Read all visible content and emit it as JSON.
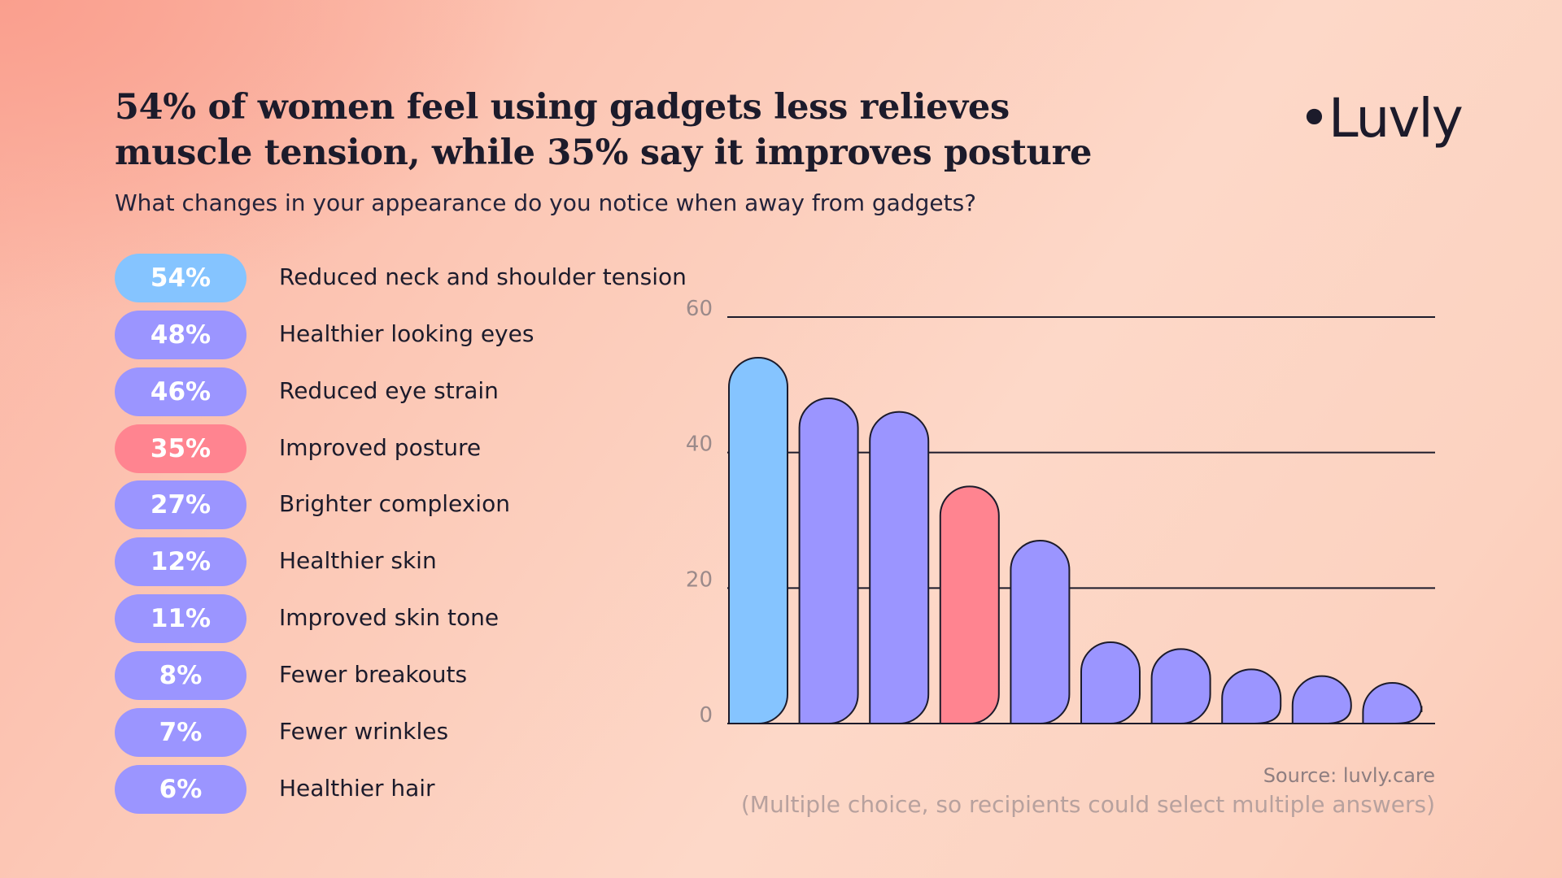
{
  "header": {
    "title": "54% of women feel using gadgets less relieves muscle tension, while 35% say it improves posture",
    "subtitle": "What changes in your appearance do you notice when away from gadgets?",
    "logo": "•Luvly"
  },
  "legend_items": [
    {
      "pct": "54%",
      "label": "Reduced neck and shoulder tension",
      "color": "#85c4ff"
    },
    {
      "pct": "48%",
      "label": "Healthier looking eyes",
      "color": "#9b95ff"
    },
    {
      "pct": "46%",
      "label": "Reduced eye strain",
      "color": "#9b95ff"
    },
    {
      "pct": "35%",
      "label": "Improved posture",
      "color": "#ff8490"
    },
    {
      "pct": "27%",
      "label": "Brighter complexion",
      "color": "#9b95ff"
    },
    {
      "pct": "12%",
      "label": "Healthier skin",
      "color": "#9b95ff"
    },
    {
      "pct": "11%",
      "label": "Improved skin tone",
      "color": "#9b95ff"
    },
    {
      "pct": "8%",
      "label": "Fewer breakouts",
      "color": "#9b95ff"
    },
    {
      "pct": "7%",
      "label": "Fewer wrinkles",
      "color": "#9b95ff"
    },
    {
      "pct": "6%",
      "label": "Healthier hair",
      "color": "#9b95ff"
    }
  ],
  "chart_data": {
    "type": "bar",
    "categories": [
      "Reduced neck and shoulder tension",
      "Healthier looking eyes",
      "Reduced eye strain",
      "Improved posture",
      "Brighter complexion",
      "Healthier skin",
      "Improved skin tone",
      "Fewer breakouts",
      "Fewer wrinkles",
      "Healthier hair"
    ],
    "values": [
      54,
      48,
      46,
      35,
      27,
      12,
      11,
      8,
      7,
      6
    ],
    "colors": [
      "#85c4ff",
      "#9b95ff",
      "#9b95ff",
      "#ff8490",
      "#9b95ff",
      "#9b95ff",
      "#9b95ff",
      "#9b95ff",
      "#9b95ff",
      "#9b95ff"
    ],
    "ylim": [
      0,
      60
    ],
    "yticks": [
      0,
      20,
      40,
      60
    ],
    "ytick_labels": [
      "0",
      "20",
      "40",
      "60"
    ],
    "grid": true,
    "xlabel": "",
    "ylabel": ""
  },
  "footer": {
    "source": "Source: luvly.care",
    "note": "(Multiple choice, so recipients could select multiple answers)"
  }
}
